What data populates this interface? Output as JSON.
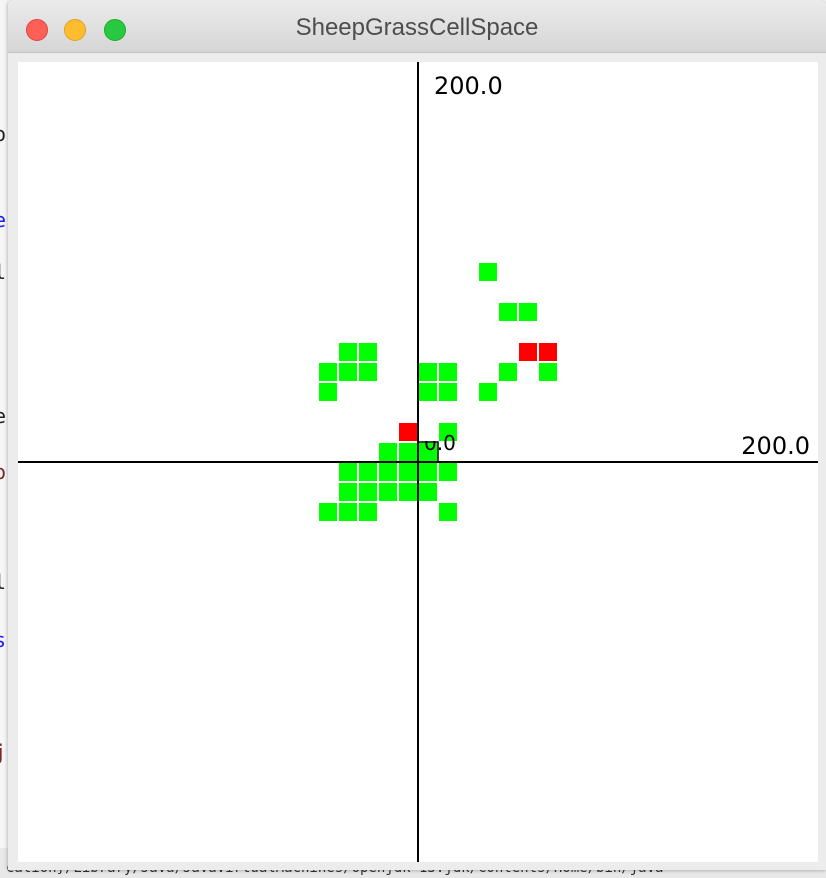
{
  "window": {
    "title": "SheepGrassCellSpace"
  },
  "canvas": {
    "y_axis_max_label": "200.0",
    "x_axis_max_label": "200.0",
    "origin_label": "0.0"
  },
  "cell_grid": {
    "cell_size_units": 10,
    "grass_color": "#00ff00",
    "sheep_color": "#ff0000",
    "empty_color": "#ffffff",
    "grass_cells": [
      [
        -4,
        5
      ],
      [
        -3,
        5
      ],
      [
        -5,
        4
      ],
      [
        -4,
        4
      ],
      [
        -3,
        4
      ],
      [
        0,
        4
      ],
      [
        1,
        4
      ],
      [
        -5,
        3
      ],
      [
        0,
        3
      ],
      [
        1,
        3
      ],
      [
        1,
        1
      ],
      [
        -2,
        0
      ],
      [
        -1,
        0
      ],
      [
        0,
        0
      ],
      [
        -4,
        -1
      ],
      [
        -3,
        -1
      ],
      [
        -2,
        -1
      ],
      [
        -1,
        -1
      ],
      [
        0,
        -1
      ],
      [
        1,
        -1
      ],
      [
        -4,
        -2
      ],
      [
        -3,
        -2
      ],
      [
        -2,
        -2
      ],
      [
        -1,
        -2
      ],
      [
        0,
        -2
      ],
      [
        -5,
        -3
      ],
      [
        -4,
        -3
      ],
      [
        -3,
        -3
      ],
      [
        1,
        -3
      ],
      [
        3,
        9
      ],
      [
        4,
        7
      ],
      [
        5,
        7
      ],
      [
        4,
        4
      ],
      [
        6,
        4
      ],
      [
        3,
        3
      ]
    ],
    "sheep_cells": [
      [
        5,
        5
      ],
      [
        6,
        5
      ],
      [
        -1,
        1
      ]
    ],
    "empty_cells": [
      [
        0,
        1
      ]
    ],
    "selected_cell": [
      0,
      0
    ]
  }
}
